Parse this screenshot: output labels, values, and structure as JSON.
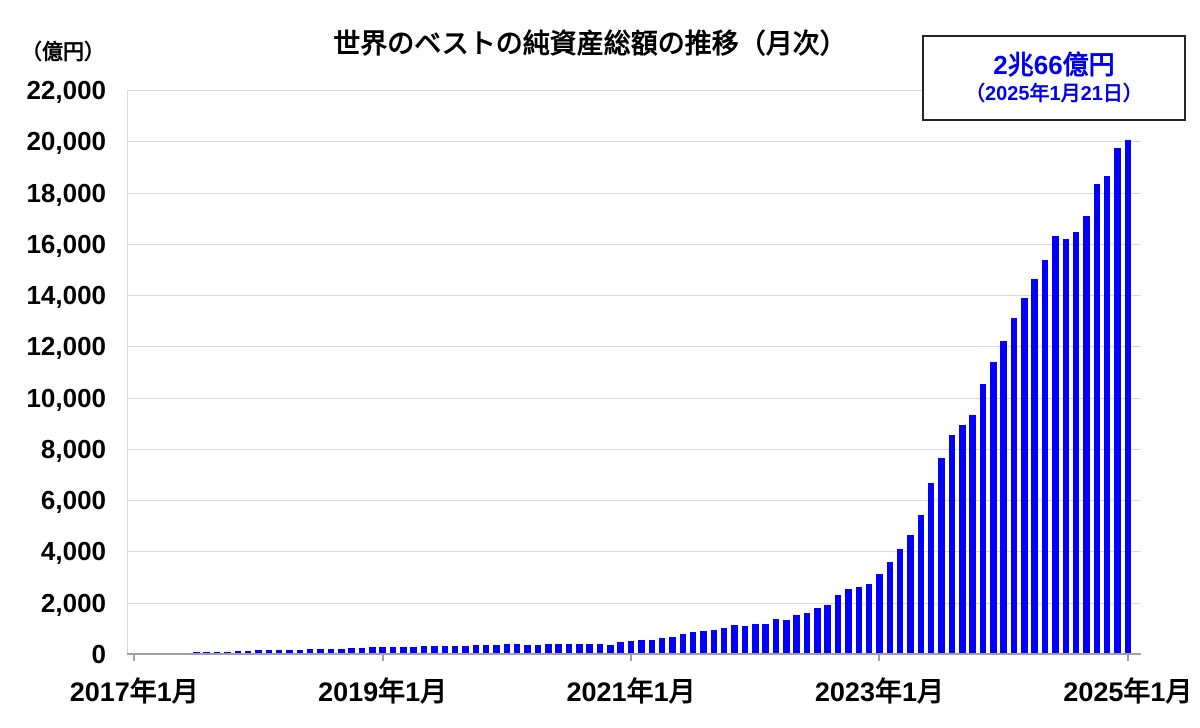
{
  "title": {
    "text": "世界のベストの純資産総額の推移（月次）"
  },
  "y_axis": {
    "unit_label": "（億円）",
    "ticks": [
      {
        "value": 0,
        "label": "0"
      },
      {
        "value": 2000,
        "label": "2,000"
      },
      {
        "value": 4000,
        "label": "4,000"
      },
      {
        "value": 6000,
        "label": "6,000"
      },
      {
        "value": 8000,
        "label": "8,000"
      },
      {
        "value": 10000,
        "label": "10,000"
      },
      {
        "value": 12000,
        "label": "12,000"
      },
      {
        "value": 14000,
        "label": "14,000"
      },
      {
        "value": 16000,
        "label": "16,000"
      },
      {
        "value": 18000,
        "label": "18,000"
      },
      {
        "value": 20000,
        "label": "20,000"
      },
      {
        "value": 22000,
        "label": "22,000"
      }
    ]
  },
  "x_axis": {
    "ticks": [
      {
        "month_index": 0,
        "label": "2017年1月"
      },
      {
        "month_index": 24,
        "label": "2019年1月"
      },
      {
        "month_index": 48,
        "label": "2021年1月"
      },
      {
        "month_index": 72,
        "label": "2023年1月"
      },
      {
        "month_index": 96,
        "label": "2025年1月"
      }
    ]
  },
  "annotation": {
    "line1": "2兆66億円",
    "line2": "（2025年1月21日）"
  },
  "colors": {
    "bar": "#0202fa",
    "gridline": "#d9d9d9",
    "axis": "#a0a0a0",
    "annotation_text": "#0000ee",
    "annotation_border": "#262626",
    "title_text": "#000000"
  },
  "chart_data": {
    "type": "bar",
    "title": "世界のベストの純資産総額の推移（月次）",
    "ylabel": "（億円）",
    "ylim": [
      0,
      22000
    ],
    "grid": "horizontal",
    "frequency": "monthly",
    "x_start": "2017-01",
    "x_end": "2025-01",
    "last_point_label": "2兆66億円（2025年1月21日）",
    "last_point_value": 20066,
    "values": [
      30,
      34,
      38,
      43,
      48,
      54,
      60,
      68,
      77,
      88,
      100,
      120,
      140,
      150,
      158,
      166,
      174,
      182,
      190,
      200,
      212,
      226,
      242,
      258,
      268,
      275,
      282,
      290,
      297,
      305,
      312,
      320,
      328,
      338,
      348,
      360,
      372,
      380,
      350,
      365,
      378,
      388,
      396,
      404,
      410,
      400,
      360,
      460,
      500,
      530,
      555,
      630,
      680,
      790,
      850,
      890,
      945,
      1010,
      1115,
      1090,
      1155,
      1180,
      1375,
      1335,
      1505,
      1595,
      1790,
      1895,
      2285,
      2550,
      2600,
      2740,
      3130,
      3590,
      4110,
      4630,
      5440,
      6690,
      7660,
      8540,
      8930,
      9320,
      10530,
      11400,
      12210,
      13095,
      13875,
      14630,
      15370,
      16310,
      16180,
      16450,
      17090,
      18330,
      18655,
      19740,
      20066
    ]
  }
}
